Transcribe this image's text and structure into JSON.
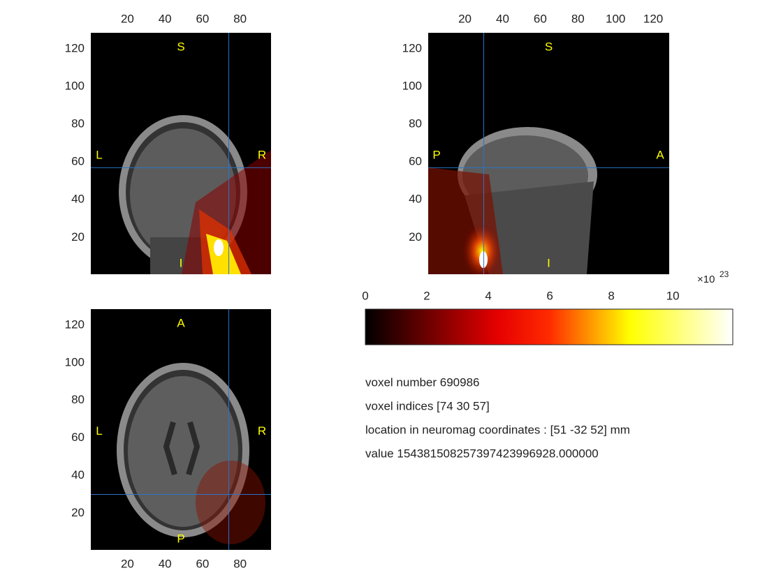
{
  "panels": [
    {
      "xaxis_location": "top",
      "xlim": [
        0.5,
        96.5
      ],
      "ylim": [
        0.5,
        128.5
      ],
      "xticks": [
        20,
        40,
        60,
        80
      ],
      "yticks": [
        20,
        40,
        60,
        80,
        100,
        120
      ],
      "labels": {
        "top": "S",
        "bottom": "I",
        "left": "L",
        "right": "R"
      },
      "crosshair": [
        74,
        57
      ]
    },
    {
      "xaxis_location": "top",
      "xlim": [
        0.5,
        128.5
      ],
      "ylim": [
        0.5,
        128.5
      ],
      "xticks": [
        20,
        40,
        60,
        80,
        100,
        120
      ],
      "yticks": [
        20,
        40,
        60,
        80,
        100,
        120
      ],
      "labels": {
        "top": "S",
        "bottom": "I",
        "left": "P",
        "right": "A"
      },
      "crosshair": [
        30,
        57
      ]
    },
    {
      "xaxis_location": "bottom",
      "xlim": [
        0.5,
        96.5
      ],
      "ylim": [
        0.5,
        128.5
      ],
      "xticks": [
        20,
        40,
        60,
        80
      ],
      "yticks": [
        20,
        40,
        60,
        80,
        100,
        120
      ],
      "labels": {
        "top": "A",
        "bottom": "P",
        "left": "L",
        "right": "R"
      },
      "crosshair": [
        74,
        30
      ]
    }
  ],
  "colorbar": {
    "clim": [
      0,
      11.95
    ],
    "ticks": [
      0,
      2,
      4,
      6,
      8,
      10
    ],
    "multiplier": "×10",
    "exponent": "23"
  },
  "info": [
    "voxel number 690986",
    "voxel indices [74 30 57]",
    "location in neuromag coordinates : [51 -32 52] mm",
    "value 1543815082573974239969​28.000000"
  ]
}
